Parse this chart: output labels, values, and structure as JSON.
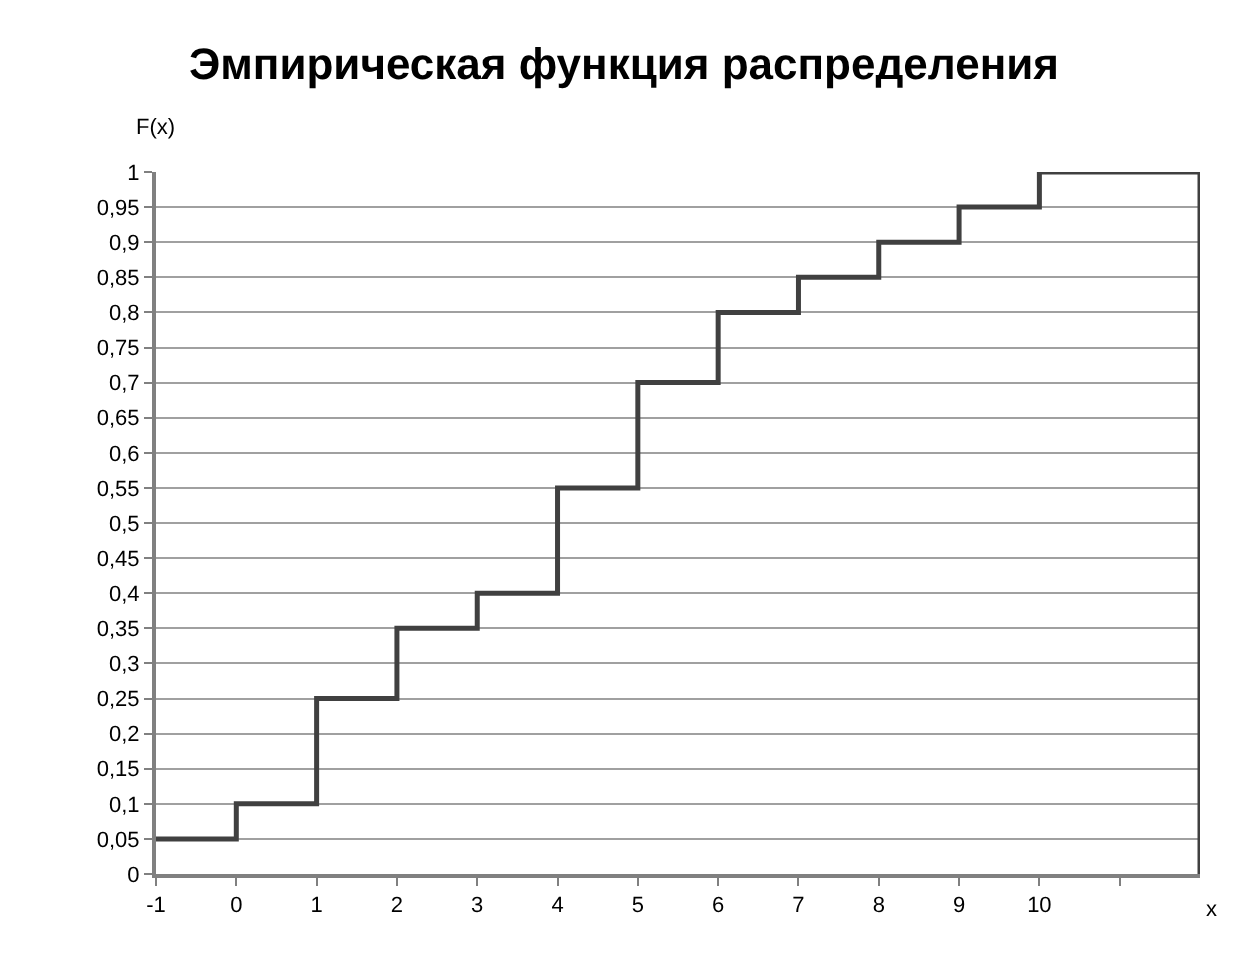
{
  "chart_data": {
    "type": "step",
    "title": "Эмпирическая функция распределения",
    "xlabel": "x",
    "ylabel": "F(x)",
    "x": [
      -1,
      0,
      1,
      2,
      3,
      4,
      5,
      6,
      7,
      8,
      9,
      10,
      12,
      12
    ],
    "series": [
      {
        "color": "#404040",
        "values": [
          0.05,
          0.1,
          0.25,
          0.35,
          0.4,
          0.55,
          0.7,
          0.8,
          0.85,
          0.9,
          0.95,
          1,
          1,
          0
        ]
      }
    ],
    "xlim": [
      -1,
      12
    ],
    "xticks": [
      -1,
      0,
      1,
      2,
      3,
      4,
      5,
      6,
      7,
      8,
      9,
      10,
      {
        "value": 11,
        "label": null
      }
    ],
    "ylim": [
      0,
      1
    ],
    "yticks": [
      0,
      {
        "value": 0.05,
        "label": "0,05"
      },
      {
        "value": 0.1,
        "label": "0,1"
      },
      {
        "value": 0.15,
        "label": "0,15"
      },
      {
        "value": 0.2,
        "label": "0,2"
      },
      {
        "value": 0.25,
        "label": "0,25"
      },
      {
        "value": 0.3,
        "label": "0,3"
      },
      {
        "value": 0.35,
        "label": "0,35"
      },
      {
        "value": 0.4,
        "label": "0,4"
      },
      {
        "value": 0.45,
        "label": "0,45"
      },
      {
        "value": 0.5,
        "label": "0,5"
      },
      {
        "value": 0.55,
        "label": "0,55"
      },
      {
        "value": 0.6,
        "label": "0,6"
      },
      {
        "value": 0.65,
        "label": "0,65"
      },
      {
        "value": 0.7,
        "label": "0,7"
      },
      {
        "value": 0.75,
        "label": "0,75"
      },
      {
        "value": 0.8,
        "label": "0,8"
      },
      {
        "value": 0.85,
        "label": "0,85"
      },
      {
        "value": 0.9,
        "label": "0,9"
      },
      {
        "value": 0.95,
        "label": "0,95"
      },
      1
    ],
    "grid": "y",
    "line_style": "solid"
  }
}
